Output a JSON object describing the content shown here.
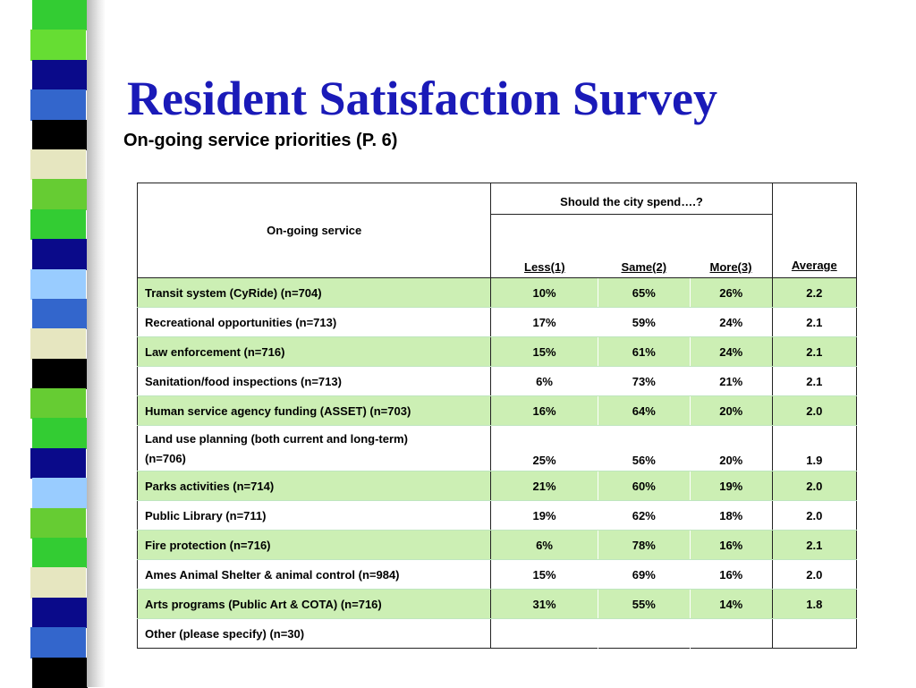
{
  "title": "Resident Satisfaction Survey",
  "subtitle": "On-going service priorities (P. 6)",
  "stripe_colors": [
    "#33cc33",
    "#66dd33",
    "#0a0a8a",
    "#3366cc",
    "#000000",
    "#e6e6c0",
    "#66cc33",
    "#33cc33",
    "#0a0a8a",
    "#99ccff",
    "#3366cc",
    "#e6e6c0",
    "#000000",
    "#66cc33",
    "#33cc33",
    "#0a0a8a",
    "#99ccff",
    "#66cc33",
    "#33cc33",
    "#e6e6c0",
    "#0a0a8a",
    "#3366cc",
    "#000000"
  ],
  "table": {
    "service_header": "On-going service",
    "spend_header": "Should the city spend….?",
    "col_less": "Less(1)",
    "col_same": "Same(2)",
    "col_more": "More(3)",
    "col_average": "Average",
    "rows": [
      {
        "name": "Transit system (CyRide) (n=704)",
        "less": "10%",
        "same": "65%",
        "more": "26%",
        "avg": "2.2"
      },
      {
        "name": "Recreational opportunities (n=713)",
        "less": "17%",
        "same": "59%",
        "more": "24%",
        "avg": "2.1"
      },
      {
        "name": "Law enforcement (n=716)",
        "less": "15%",
        "same": "61%",
        "more": "24%",
        "avg": "2.1"
      },
      {
        "name": "Sanitation/food inspections (n=713)",
        "less": "6%",
        "same": "73%",
        "more": "21%",
        "avg": "2.1"
      },
      {
        "name": "Human service agency funding (ASSET) (n=703)",
        "less": "16%",
        "same": "64%",
        "more": "20%",
        "avg": "2.0"
      },
      {
        "name": "Land use planning (both current and long-term)",
        "name2": "(n=706)",
        "less": "25%",
        "same": "56%",
        "more": "20%",
        "avg": "1.9"
      },
      {
        "name": "Parks activities (n=714)",
        "less": "21%",
        "same": "60%",
        "more": "19%",
        "avg": "2.0"
      },
      {
        "name": "Public Library (n=711)",
        "less": "19%",
        "same": "62%",
        "more": "18%",
        "avg": "2.0"
      },
      {
        "name": "Fire protection (n=716)",
        "less": "6%",
        "same": "78%",
        "more": "16%",
        "avg": "2.1"
      },
      {
        "name": "Ames Animal Shelter & animal control (n=984)",
        "less": "15%",
        "same": "69%",
        "more": "16%",
        "avg": "2.0"
      },
      {
        "name": "Arts programs (Public Art & COTA) (n=716)",
        "less": "31%",
        "same": "55%",
        "more": "14%",
        "avg": "1.8"
      },
      {
        "name": "Other (please specify) (n=30)",
        "less": "",
        "same": "",
        "more": "",
        "avg": ""
      }
    ]
  }
}
